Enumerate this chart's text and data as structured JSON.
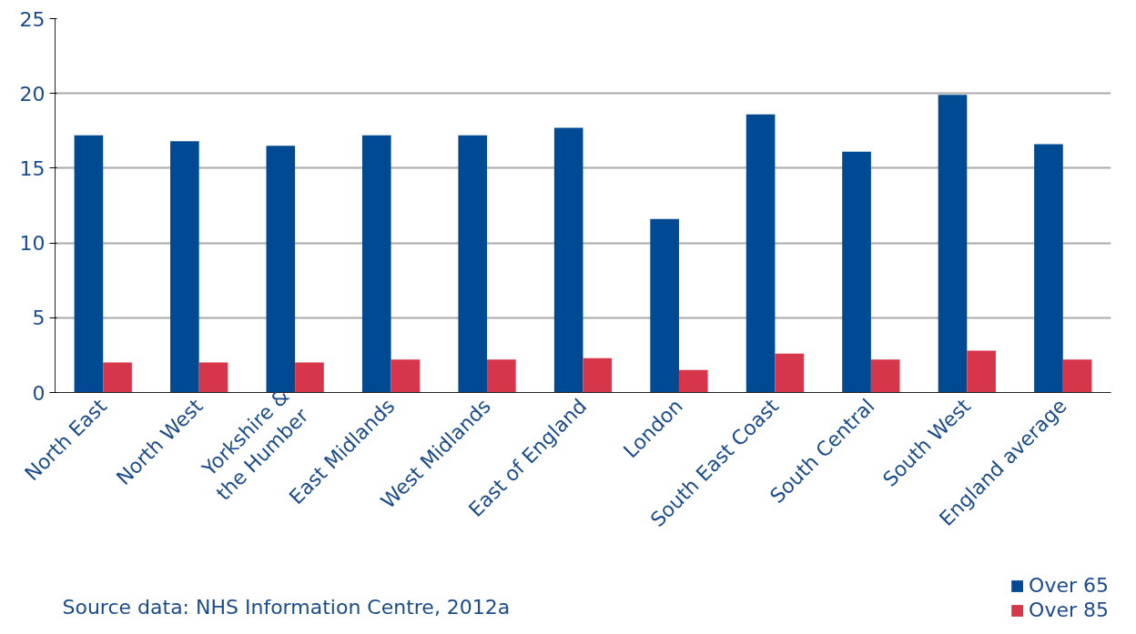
{
  "chart_data": {
    "type": "bar",
    "categories": [
      "North East",
      "North West",
      "Yorkshire & the Humber",
      "East Midlands",
      "West Midlands",
      "East of England",
      "London",
      "South East Coast",
      "South Central",
      "South West",
      "England average"
    ],
    "series": [
      {
        "name": "Over 65",
        "color": "#004a93",
        "values": [
          17.2,
          16.8,
          16.5,
          17.2,
          17.2,
          17.7,
          11.6,
          18.6,
          16.1,
          19.9,
          16.6
        ]
      },
      {
        "name": "Over 85",
        "color": "#d7364a",
        "values": [
          2.0,
          2.0,
          2.0,
          2.2,
          2.2,
          2.3,
          1.5,
          2.6,
          2.2,
          2.8,
          2.2
        ]
      }
    ],
    "ylim": [
      0,
      25
    ],
    "yticks": [
      0,
      5,
      10,
      15,
      20,
      25
    ],
    "grid": "y",
    "legend": "bottom right",
    "annotations": [
      "Source data: NHS Information Centre, 2012a"
    ]
  }
}
